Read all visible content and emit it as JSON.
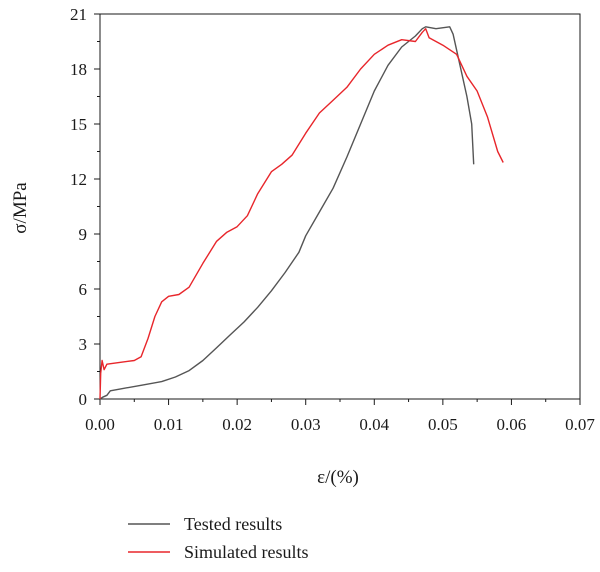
{
  "chart_data": {
    "type": "line",
    "xlabel": "ε/(%)",
    "ylabel": "σ/MPa",
    "xlim": [
      0,
      0.07
    ],
    "ylim": [
      0,
      21
    ],
    "x_ticks": [
      "0.00",
      "0.01",
      "0.02",
      "0.03",
      "0.04",
      "0.05",
      "0.06",
      "0.07"
    ],
    "y_ticks": [
      "0",
      "3",
      "6",
      "9",
      "12",
      "15",
      "18",
      "21"
    ],
    "grid": false,
    "legend_position": "bottom-center",
    "series": [
      {
        "name": "Tested results",
        "color": "#555555",
        "points": [
          [
            0.0,
            0.0
          ],
          [
            0.0004,
            0.1
          ],
          [
            0.001,
            0.2
          ],
          [
            0.0015,
            0.45
          ],
          [
            0.003,
            0.55
          ],
          [
            0.006,
            0.75
          ],
          [
            0.009,
            0.95
          ],
          [
            0.011,
            1.2
          ],
          [
            0.013,
            1.55
          ],
          [
            0.015,
            2.1
          ],
          [
            0.017,
            2.8
          ],
          [
            0.019,
            3.5
          ],
          [
            0.021,
            4.2
          ],
          [
            0.023,
            5.0
          ],
          [
            0.025,
            5.9
          ],
          [
            0.027,
            6.9
          ],
          [
            0.029,
            8.0
          ],
          [
            0.03,
            8.9
          ],
          [
            0.032,
            10.2
          ],
          [
            0.034,
            11.5
          ],
          [
            0.036,
            13.2
          ],
          [
            0.038,
            15.0
          ],
          [
            0.04,
            16.8
          ],
          [
            0.042,
            18.2
          ],
          [
            0.044,
            19.2
          ],
          [
            0.046,
            19.8
          ],
          [
            0.047,
            20.2
          ],
          [
            0.0475,
            20.3
          ],
          [
            0.049,
            20.2
          ],
          [
            0.051,
            20.3
          ],
          [
            0.0515,
            19.9
          ],
          [
            0.0525,
            18.2
          ],
          [
            0.0535,
            16.5
          ],
          [
            0.0542,
            15.0
          ],
          [
            0.0545,
            12.8
          ]
        ]
      },
      {
        "name": "Simulated results",
        "color": "#e8262b",
        "points": [
          [
            0.0,
            0.0
          ],
          [
            0.0001,
            1.4
          ],
          [
            0.0003,
            2.1
          ],
          [
            0.0006,
            1.6
          ],
          [
            0.001,
            1.9
          ],
          [
            0.003,
            2.0
          ],
          [
            0.005,
            2.1
          ],
          [
            0.006,
            2.3
          ],
          [
            0.007,
            3.3
          ],
          [
            0.008,
            4.5
          ],
          [
            0.009,
            5.3
          ],
          [
            0.01,
            5.6
          ],
          [
            0.0115,
            5.7
          ],
          [
            0.013,
            6.1
          ],
          [
            0.015,
            7.4
          ],
          [
            0.017,
            8.6
          ],
          [
            0.0185,
            9.1
          ],
          [
            0.02,
            9.4
          ],
          [
            0.0215,
            10.0
          ],
          [
            0.023,
            11.2
          ],
          [
            0.025,
            12.4
          ],
          [
            0.0265,
            12.8
          ],
          [
            0.028,
            13.3
          ],
          [
            0.03,
            14.5
          ],
          [
            0.032,
            15.6
          ],
          [
            0.034,
            16.3
          ],
          [
            0.036,
            17.0
          ],
          [
            0.038,
            18.0
          ],
          [
            0.04,
            18.8
          ],
          [
            0.042,
            19.3
          ],
          [
            0.044,
            19.6
          ],
          [
            0.046,
            19.5
          ],
          [
            0.047,
            20.0
          ],
          [
            0.0475,
            20.2
          ],
          [
            0.048,
            19.7
          ],
          [
            0.05,
            19.3
          ],
          [
            0.052,
            18.8
          ],
          [
            0.0535,
            17.6
          ],
          [
            0.055,
            16.8
          ],
          [
            0.0565,
            15.4
          ],
          [
            0.058,
            13.5
          ],
          [
            0.0588,
            12.9
          ]
        ]
      }
    ]
  }
}
